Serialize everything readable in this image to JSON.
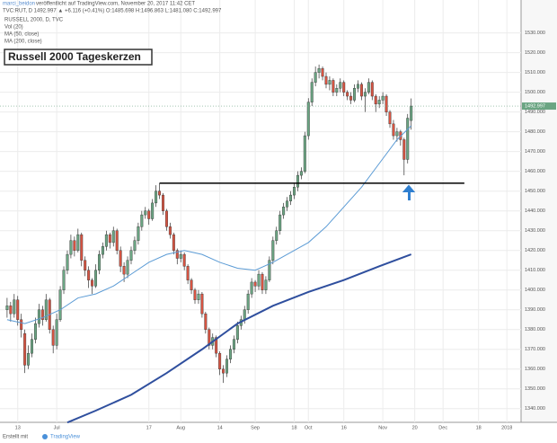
{
  "header": {
    "author": "marci_beidon",
    "published": "veröffentlicht auf TradingView.com, November 20, 2017 11:42 CET",
    "symbol_line": "TVC:RUT, D 1492.997 ▲ +6.116 (+0.41%) O:1485.698 H:1496.863 L:1481.080 C:1492.997"
  },
  "footer": {
    "text": "Erstellt mit",
    "brand": "TradingView"
  },
  "chart_data": {
    "type": "candlestick",
    "title": "Russell 2000 Tageskerzen",
    "legend": [
      "RUSSELL 2000, D, TVC",
      "Vol (20)",
      "MA (50, close)",
      "MA (200, close)"
    ],
    "up_color": "#6ba583",
    "down_color": "#d75442",
    "grid": true,
    "ylim": [
      1334,
      1543
    ],
    "xlim": [
      -2,
      145
    ],
    "yticks": [
      {
        "value": 1340,
        "label": "1340.000"
      },
      {
        "value": 1350,
        "label": "1350.000"
      },
      {
        "value": 1360,
        "label": "1360.000"
      },
      {
        "value": 1370,
        "label": "1370.000"
      },
      {
        "value": 1380,
        "label": "1380.000"
      },
      {
        "value": 1390,
        "label": "1390.000"
      },
      {
        "value": 1400,
        "label": "1400.000"
      },
      {
        "value": 1410,
        "label": "1410.000"
      },
      {
        "value": 1420,
        "label": "1420.000"
      },
      {
        "value": 1430,
        "label": "1430.000"
      },
      {
        "value": 1440,
        "label": "1440.000"
      },
      {
        "value": 1450,
        "label": "1450.000"
      },
      {
        "value": 1460,
        "label": "1460.000"
      },
      {
        "value": 1470,
        "label": "1470.000"
      },
      {
        "value": 1480,
        "label": "1480.000"
      },
      {
        "value": 1490,
        "label": "1490.000"
      },
      {
        "value": 1500,
        "label": "1500.000"
      },
      {
        "value": 1510,
        "label": "1510.000"
      },
      {
        "value": 1520,
        "label": "1520.000"
      },
      {
        "value": 1530,
        "label": "1530.000"
      }
    ],
    "xticks": [
      {
        "value": 3,
        "label": "13"
      },
      {
        "value": 14,
        "label": "Jul"
      },
      {
        "value": 40,
        "label": "17"
      },
      {
        "value": 49,
        "label": "Aug"
      },
      {
        "value": 60,
        "label": "14"
      },
      {
        "value": 70,
        "label": "Sep"
      },
      {
        "value": 81,
        "label": "18"
      },
      {
        "value": 85,
        "label": "Oct"
      },
      {
        "value": 95,
        "label": "16"
      },
      {
        "value": 106,
        "label": "Nov"
      },
      {
        "value": 115,
        "label": "20"
      },
      {
        "value": 123,
        "label": "Dec"
      },
      {
        "value": 133,
        "label": "18"
      },
      {
        "value": 141,
        "label": "2018"
      }
    ],
    "ohlc": [
      [
        1390,
        1396,
        1386,
        1392
      ],
      [
        1392,
        1394,
        1384,
        1388
      ],
      [
        1388,
        1398,
        1386,
        1395
      ],
      [
        1395,
        1397,
        1382,
        1385
      ],
      [
        1385,
        1388,
        1376,
        1380
      ],
      [
        1378,
        1380,
        1358,
        1362
      ],
      [
        1362,
        1372,
        1360,
        1368
      ],
      [
        1368,
        1378,
        1366,
        1375
      ],
      [
        1375,
        1386,
        1373,
        1383
      ],
      [
        1383,
        1393,
        1381,
        1390
      ],
      [
        1390,
        1392,
        1382,
        1385
      ],
      [
        1385,
        1398,
        1384,
        1395
      ],
      [
        1395,
        1396,
        1378,
        1380
      ],
      [
        1380,
        1382,
        1368,
        1372
      ],
      [
        1372,
        1388,
        1370,
        1385
      ],
      [
        1385,
        1402,
        1384,
        1400
      ],
      [
        1400,
        1412,
        1398,
        1410
      ],
      [
        1410,
        1420,
        1408,
        1418
      ],
      [
        1418,
        1428,
        1416,
        1425
      ],
      [
        1425,
        1427,
        1417,
        1420
      ],
      [
        1420,
        1431,
        1419,
        1428
      ],
      [
        1428,
        1429,
        1412,
        1415
      ],
      [
        1415,
        1417,
        1407,
        1410
      ],
      [
        1410,
        1412,
        1401,
        1405
      ],
      [
        1405,
        1406,
        1398,
        1402
      ],
      [
        1402,
        1413,
        1401,
        1410
      ],
      [
        1410,
        1420,
        1408,
        1418
      ],
      [
        1418,
        1424,
        1416,
        1422
      ],
      [
        1422,
        1430,
        1420,
        1428
      ],
      [
        1428,
        1429,
        1421,
        1424
      ],
      [
        1424,
        1432,
        1422,
        1430
      ],
      [
        1430,
        1431,
        1418,
        1420
      ],
      [
        1420,
        1422,
        1409,
        1412
      ],
      [
        1412,
        1414,
        1404,
        1408
      ],
      [
        1408,
        1417,
        1406,
        1415
      ],
      [
        1415,
        1422,
        1413,
        1420
      ],
      [
        1420,
        1427,
        1418,
        1425
      ],
      [
        1425,
        1434,
        1423,
        1432
      ],
      [
        1432,
        1440,
        1430,
        1438
      ],
      [
        1438,
        1442,
        1436,
        1440
      ],
      [
        1440,
        1441,
        1433,
        1436
      ],
      [
        1436,
        1446,
        1435,
        1444
      ],
      [
        1444,
        1453,
        1442,
        1450
      ],
      [
        1450,
        1454,
        1446,
        1448
      ],
      [
        1448,
        1449,
        1438,
        1440
      ],
      [
        1440,
        1441,
        1430,
        1432
      ],
      [
        1432,
        1434,
        1426,
        1428
      ],
      [
        1428,
        1429,
        1418,
        1420
      ],
      [
        1420,
        1421,
        1413,
        1416
      ],
      [
        1416,
        1420,
        1414,
        1418
      ],
      [
        1418,
        1419,
        1410,
        1412
      ],
      [
        1412,
        1413,
        1403,
        1405
      ],
      [
        1405,
        1406,
        1398,
        1400
      ],
      [
        1400,
        1401,
        1393,
        1395
      ],
      [
        1395,
        1400,
        1393,
        1398
      ],
      [
        1398,
        1399,
        1386,
        1388
      ],
      [
        1388,
        1389,
        1378,
        1380
      ],
      [
        1380,
        1381,
        1370,
        1372
      ],
      [
        1372,
        1378,
        1370,
        1376
      ],
      [
        1376,
        1377,
        1366,
        1368
      ],
      [
        1368,
        1369,
        1357,
        1360
      ],
      [
        1360,
        1362,
        1353,
        1358
      ],
      [
        1358,
        1367,
        1356,
        1365
      ],
      [
        1365,
        1372,
        1363,
        1370
      ],
      [
        1370,
        1377,
        1368,
        1375
      ],
      [
        1375,
        1384,
        1373,
        1382
      ],
      [
        1382,
        1387,
        1380,
        1385
      ],
      [
        1385,
        1392,
        1383,
        1390
      ],
      [
        1390,
        1400,
        1388,
        1398
      ],
      [
        1398,
        1406,
        1396,
        1404
      ],
      [
        1404,
        1405,
        1399,
        1402
      ],
      [
        1402,
        1410,
        1400,
        1408
      ],
      [
        1408,
        1409,
        1398,
        1400
      ],
      [
        1400,
        1407,
        1398,
        1405
      ],
      [
        1405,
        1417,
        1404,
        1415
      ],
      [
        1415,
        1427,
        1413,
        1425
      ],
      [
        1425,
        1432,
        1423,
        1430
      ],
      [
        1430,
        1440,
        1428,
        1438
      ],
      [
        1438,
        1444,
        1436,
        1442
      ],
      [
        1442,
        1447,
        1440,
        1445
      ],
      [
        1445,
        1450,
        1443,
        1448
      ],
      [
        1448,
        1454,
        1446,
        1452
      ],
      [
        1452,
        1460,
        1450,
        1458
      ],
      [
        1458,
        1462,
        1456,
        1460
      ],
      [
        1460,
        1480,
        1459,
        1478
      ],
      [
        1478,
        1497,
        1476,
        1495
      ],
      [
        1495,
        1507,
        1493,
        1505
      ],
      [
        1505,
        1513,
        1503,
        1510
      ],
      [
        1510,
        1514,
        1507,
        1512
      ],
      [
        1512,
        1513,
        1506,
        1508
      ],
      [
        1508,
        1510,
        1502,
        1504
      ],
      [
        1504,
        1508,
        1501,
        1506
      ],
      [
        1506,
        1507,
        1498,
        1500
      ],
      [
        1500,
        1504,
        1498,
        1502
      ],
      [
        1502,
        1507,
        1500,
        1505
      ],
      [
        1505,
        1506,
        1498,
        1500
      ],
      [
        1500,
        1501,
        1496,
        1498
      ],
      [
        1498,
        1500,
        1494,
        1496
      ],
      [
        1496,
        1504,
        1495,
        1502
      ],
      [
        1502,
        1506,
        1500,
        1504
      ],
      [
        1504,
        1505,
        1496,
        1498
      ],
      [
        1498,
        1502,
        1490,
        1500
      ],
      [
        1500,
        1507,
        1499,
        1505
      ],
      [
        1505,
        1506,
        1496,
        1498
      ],
      [
        1498,
        1499,
        1490,
        1494
      ],
      [
        1494,
        1498,
        1492,
        1496
      ],
      [
        1496,
        1500,
        1494,
        1498
      ],
      [
        1498,
        1499,
        1488,
        1490
      ],
      [
        1490,
        1491,
        1482,
        1484
      ],
      [
        1484,
        1486,
        1476,
        1478
      ],
      [
        1478,
        1482,
        1475,
        1480
      ],
      [
        1480,
        1481,
        1473,
        1476
      ],
      [
        1476,
        1477,
        1458,
        1466
      ],
      [
        1466,
        1489,
        1464,
        1486.881
      ],
      [
        1485.698,
        1496.863,
        1481.08,
        1492.997
      ]
    ],
    "ma": [
      {
        "color": "#5b9bd5",
        "width": 1,
        "x": [
          0,
          5,
          10,
          15,
          20,
          25,
          30,
          35,
          40,
          45,
          50,
          55,
          60,
          65,
          70,
          75,
          80,
          85,
          90,
          95,
          100,
          105,
          110,
          114
        ],
        "values": [
          1385,
          1383,
          1386,
          1390,
          1396,
          1398,
          1402,
          1408,
          1414,
          1418,
          1420,
          1418,
          1414,
          1411,
          1410,
          1414,
          1419,
          1424,
          1432,
          1442,
          1452,
          1464,
          1476,
          1483
        ]
      },
      {
        "color": "#2f4f9e",
        "width": 2,
        "x": [
          17,
          25,
          35,
          45,
          55,
          65,
          75,
          85,
          95,
          105,
          114
        ],
        "values": [
          1333,
          1339,
          1347,
          1358,
          1370,
          1383,
          1392,
          1399,
          1405,
          1412,
          1418
        ]
      }
    ],
    "support_line": {
      "value": 1454,
      "x": [
        43,
        129
      ]
    }
  }
}
